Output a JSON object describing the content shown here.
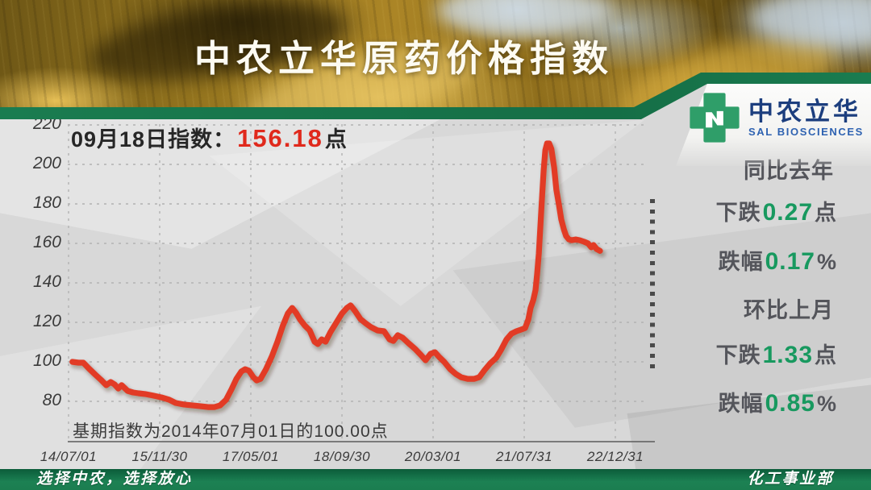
{
  "banner": {
    "title": "中农立华原药价格指数"
  },
  "logo": {
    "icon": "green-cross-bolt-icon",
    "name_cn": "中农立华",
    "name_en": "SAL BIOSCIENCES",
    "brand_green": "#2f9e69",
    "brand_blue": "#1c3e7e"
  },
  "headline": {
    "label": "09月18日指数：",
    "value": "156.18",
    "unit": "点",
    "value_color": "#e0291c"
  },
  "base_note": "基期指数为2014年07月01日的100.00点",
  "stats": {
    "accent_green": "#18995f",
    "lines": [
      {
        "pre": "同比去年",
        "num": "",
        "suf": ""
      },
      {
        "pre": "下跌",
        "num": "0.27",
        "suf": "点"
      },
      {
        "pre": "跌幅",
        "num": "0.17",
        "suf": "%"
      },
      {
        "pre": "环比上月",
        "num": "",
        "suf": ""
      },
      {
        "pre": "下跌",
        "num": "1.33",
        "suf": "点"
      },
      {
        "pre": "跌幅",
        "num": "0.85",
        "suf": "%"
      }
    ]
  },
  "footer": {
    "left": "选择中农，选择放心",
    "right": "化工事业部"
  },
  "chart_data": {
    "type": "line",
    "title": "中农立华原药价格指数",
    "xlabel": "",
    "ylabel": "",
    "x_ticks": [
      "14/07/01",
      "15/11/30",
      "17/05/01",
      "18/09/30",
      "20/03/01",
      "21/07/31",
      "22/12/31"
    ],
    "y_ticks": [
      220,
      200,
      180,
      160,
      140,
      120,
      100,
      80
    ],
    "ylim": [
      80,
      220
    ],
    "grid": "dashed",
    "legend": "none",
    "line_color": "#e23b25",
    "latest_point": {
      "date": "09月18日",
      "value": 156.18
    },
    "base_point": {
      "date": "2014/07/01",
      "value": 100.0
    },
    "series": [
      {
        "name": "原药价格指数",
        "points": [
          [
            0.007,
            100.0
          ],
          [
            0.018,
            99.6
          ],
          [
            0.027,
            99.6
          ],
          [
            0.037,
            96.7
          ],
          [
            0.049,
            93.5
          ],
          [
            0.059,
            91.0
          ],
          [
            0.069,
            88.2
          ],
          [
            0.077,
            89.8
          ],
          [
            0.084,
            88.6
          ],
          [
            0.091,
            86.5
          ],
          [
            0.097,
            88.2
          ],
          [
            0.108,
            85.3
          ],
          [
            0.118,
            84.5
          ],
          [
            0.128,
            84.1
          ],
          [
            0.14,
            83.7
          ],
          [
            0.155,
            82.9
          ],
          [
            0.17,
            82.0
          ],
          [
            0.184,
            80.8
          ],
          [
            0.196,
            79.2
          ],
          [
            0.211,
            78.4
          ],
          [
            0.226,
            78.0
          ],
          [
            0.24,
            77.6
          ],
          [
            0.255,
            77.1
          ],
          [
            0.267,
            77.1
          ],
          [
            0.277,
            77.9
          ],
          [
            0.288,
            80.8
          ],
          [
            0.298,
            86.1
          ],
          [
            0.307,
            91.4
          ],
          [
            0.316,
            95.1
          ],
          [
            0.323,
            96.3
          ],
          [
            0.33,
            95.5
          ],
          [
            0.338,
            92.2
          ],
          [
            0.344,
            90.6
          ],
          [
            0.351,
            91.4
          ],
          [
            0.361,
            96.3
          ],
          [
            0.372,
            102.9
          ],
          [
            0.382,
            110.2
          ],
          [
            0.392,
            118.4
          ],
          [
            0.401,
            124.5
          ],
          [
            0.409,
            127.3
          ],
          [
            0.416,
            124.9
          ],
          [
            0.423,
            121.6
          ],
          [
            0.432,
            118.4
          ],
          [
            0.441,
            115.9
          ],
          [
            0.45,
            110.2
          ],
          [
            0.456,
            109.0
          ],
          [
            0.463,
            111.4
          ],
          [
            0.47,
            110.2
          ],
          [
            0.479,
            115.1
          ],
          [
            0.49,
            120.0
          ],
          [
            0.5,
            124.5
          ],
          [
            0.509,
            127.3
          ],
          [
            0.516,
            128.6
          ],
          [
            0.524,
            125.7
          ],
          [
            0.534,
            121.6
          ],
          [
            0.543,
            119.6
          ],
          [
            0.553,
            117.6
          ],
          [
            0.565,
            115.9
          ],
          [
            0.577,
            115.5
          ],
          [
            0.587,
            111.4
          ],
          [
            0.594,
            110.6
          ],
          [
            0.602,
            113.5
          ],
          [
            0.611,
            112.2
          ],
          [
            0.622,
            109.4
          ],
          [
            0.634,
            106.5
          ],
          [
            0.645,
            103.3
          ],
          [
            0.653,
            100.8
          ],
          [
            0.662,
            104.1
          ],
          [
            0.67,
            104.9
          ],
          [
            0.678,
            102.4
          ],
          [
            0.687,
            100.0
          ],
          [
            0.698,
            96.3
          ],
          [
            0.708,
            93.9
          ],
          [
            0.718,
            92.2
          ],
          [
            0.73,
            91.4
          ],
          [
            0.742,
            91.4
          ],
          [
            0.751,
            92.2
          ],
          [
            0.761,
            95.9
          ],
          [
            0.771,
            99.2
          ],
          [
            0.782,
            102.0
          ],
          [
            0.791,
            106.1
          ],
          [
            0.801,
            111.4
          ],
          [
            0.81,
            114.3
          ],
          [
            0.819,
            115.5
          ],
          [
            0.827,
            116.3
          ],
          [
            0.835,
            117.1
          ],
          [
            0.841,
            121.6
          ],
          [
            0.845,
            127.3
          ],
          [
            0.85,
            131.4
          ],
          [
            0.854,
            136.3
          ],
          [
            0.857,
            144.5
          ],
          [
            0.86,
            154.7
          ],
          [
            0.863,
            169.0
          ],
          [
            0.866,
            183.3
          ],
          [
            0.869,
            197.6
          ],
          [
            0.872,
            207.3
          ],
          [
            0.875,
            210.6
          ],
          [
            0.879,
            210.6
          ],
          [
            0.883,
            207.8
          ],
          [
            0.888,
            198.4
          ],
          [
            0.892,
            187.3
          ],
          [
            0.897,
            179.2
          ],
          [
            0.901,
            172.2
          ],
          [
            0.906,
            166.9
          ],
          [
            0.91,
            163.7
          ],
          [
            0.915,
            162.0
          ],
          [
            0.92,
            161.6
          ],
          [
            0.928,
            162.0
          ],
          [
            0.935,
            161.6
          ],
          [
            0.943,
            160.8
          ],
          [
            0.95,
            160.0
          ],
          [
            0.956,
            158.0
          ],
          [
            0.96,
            159.2
          ],
          [
            0.966,
            157.1
          ],
          [
            0.972,
            156.2
          ]
        ]
      }
    ]
  }
}
